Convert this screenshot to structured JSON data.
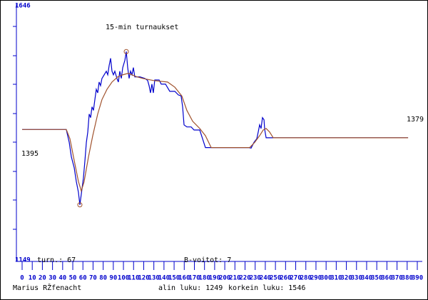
{
  "chart_data": {
    "type": "line",
    "title": "15-min turnaukset",
    "xlim": [
      0,
      390
    ],
    "xticks": [
      0,
      10,
      20,
      30,
      40,
      50,
      60,
      70,
      80,
      90,
      100,
      110,
      120,
      130,
      140,
      150,
      160,
      170,
      180,
      190,
      200,
      210,
      220,
      230,
      240,
      250,
      260,
      270,
      280,
      290,
      300,
      310,
      320,
      330,
      340,
      350,
      360,
      370,
      380,
      390
    ],
    "ylim": [
      1149,
      1646
    ],
    "series": [
      {
        "color": "#0000cc",
        "x": [
          0,
          43.6,
          46.5,
          48.6,
          51.4,
          53.5,
          55.6,
          57,
          59.1,
          60.5,
          62,
          63.4,
          64.8,
          66.2,
          67.6,
          69,
          70.4,
          71.8,
          73.2,
          74.6,
          76,
          77.4,
          78.8,
          81,
          83.1,
          84.5,
          85.9,
          87.3,
          88.7,
          90.1,
          91.5,
          93.6,
          95,
          96.4,
          97.9,
          99.3,
          101.4,
          102.8,
          104.2,
          105.6,
          107,
          108.4,
          109.8,
          111.2,
          116.2,
          121.1,
          123.9,
          125.3,
          126.7,
          128.1,
          129.5,
          130.9,
          135.2,
          137.3,
          141.5,
          145.7,
          150.7,
          154.2,
          156.9,
          158.4,
          159.8,
          162.6,
          166.8,
          169.7,
          175.3,
          178.1,
          180.9,
          184.4,
          223.2,
          226,
          228.8,
          231.6,
          233,
          234.4,
          235.8,
          237.2,
          238.7,
          239.4,
          240.8,
          380.9
        ],
        "values": [
          1395,
          1395,
          1370,
          1342,
          1321,
          1294,
          1273,
          1249,
          1280,
          1301,
          1335,
          1370,
          1390,
          1425,
          1418,
          1439,
          1432,
          1453,
          1473,
          1466,
          1487,
          1480,
          1494,
          1501,
          1508,
          1501,
          1519,
          1533,
          1508,
          1501,
          1508,
          1494,
          1487,
          1508,
          1494,
          1515,
          1529,
          1546,
          1515,
          1494,
          1508,
          1501,
          1515,
          1497,
          1497,
          1494,
          1490,
          1480,
          1466,
          1483,
          1466,
          1491,
          1491,
          1483,
          1483,
          1469,
          1469,
          1462,
          1460,
          1439,
          1404,
          1400,
          1400,
          1394,
          1394,
          1377,
          1360,
          1360,
          1360,
          1359,
          1370,
          1377,
          1390,
          1404,
          1397,
          1418,
          1414,
          1395,
          1379,
          1379
        ]
      },
      {
        "color": "#a0522d",
        "x": [
          0,
          43.6,
          47.2,
          51.4,
          55.6,
          58.4,
          61.2,
          65.5,
          69.7,
          74.6,
          78.8,
          83.8,
          88.7,
          94.3,
          99.3,
          104.9,
          112,
          119,
          129.5,
          143.6,
          150.7,
          157.6,
          162.6,
          168.3,
          175.3,
          180.9,
          186.6,
          224.6,
          229.5,
          234.4,
          237.9,
          240.8,
          244.3,
          247.8,
          380.9
        ],
        "values": [
          1395,
          1395,
          1377,
          1335,
          1294,
          1276,
          1294,
          1342,
          1383,
          1425,
          1453,
          1473,
          1487,
          1497,
          1501,
          1504,
          1498,
          1494,
          1490,
          1487,
          1477,
          1460,
          1432,
          1411,
          1397,
          1383,
          1360,
          1360,
          1370,
          1383,
          1394,
          1397,
          1390,
          1379,
          1379
        ]
      }
    ],
    "annotations": {
      "games": "turn.: 67",
      "wins": "B-voitot: 7",
      "start": "1395",
      "end": "1379",
      "author": "Marius RŽfenacht",
      "low": "alin luku: 1249",
      "high": "korkein luku: 1546"
    }
  }
}
